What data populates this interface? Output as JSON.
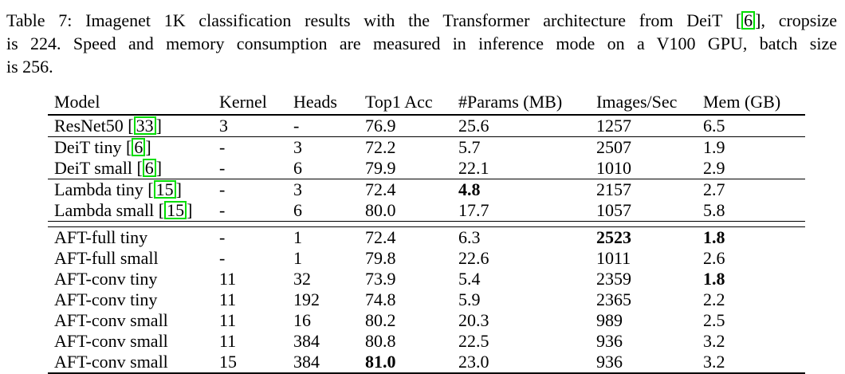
{
  "page": {
    "background_color": "#ffffff",
    "text_color": "#000000",
    "citation_box_color": "#00dd00"
  },
  "caption": {
    "lines": [
      {
        "justify": true,
        "segments": [
          {
            "t": "Table 7: Imagenet 1K classification results with the Transformer architecture from DeiT ["
          },
          {
            "cite": "6"
          },
          {
            "t": "], cropsize"
          }
        ]
      },
      {
        "justify": true,
        "segments": [
          {
            "t": "is 224. Speed and memory consumption are measured in inference mode on a V100 GPU, batch size"
          }
        ]
      },
      {
        "justify": false,
        "segments": [
          {
            "t": "is 256."
          }
        ]
      }
    ]
  },
  "table": {
    "columns": [
      "Model",
      "Kernel",
      "Heads",
      "Top1 Acc",
      "#Params (MB)",
      "Images/Sec",
      "Mem (GB)"
    ],
    "sections": [
      {
        "rule": "single",
        "rows": [
          {
            "model": {
              "name": "ResNet50",
              "cite": "33"
            },
            "cells": [
              {
                "v": "3"
              },
              {
                "v": "-"
              },
              {
                "v": "76.9"
              },
              {
                "v": "25.6"
              },
              {
                "v": "1257"
              },
              {
                "v": "6.5"
              }
            ]
          }
        ]
      },
      {
        "rule": "single",
        "rows": [
          {
            "model": {
              "name": "DeiT tiny",
              "cite": "6"
            },
            "cells": [
              {
                "v": "-"
              },
              {
                "v": "3"
              },
              {
                "v": "72.2"
              },
              {
                "v": "5.7"
              },
              {
                "v": "2507"
              },
              {
                "v": "1.9"
              }
            ]
          },
          {
            "model": {
              "name": "DeiT small",
              "cite": "6"
            },
            "cells": [
              {
                "v": "-"
              },
              {
                "v": "6"
              },
              {
                "v": "79.9"
              },
              {
                "v": "22.1"
              },
              {
                "v": "1010"
              },
              {
                "v": "2.9"
              }
            ]
          }
        ]
      },
      {
        "rule": "single",
        "rows": [
          {
            "model": {
              "name": "Lambda tiny",
              "cite": "15"
            },
            "cells": [
              {
                "v": "-"
              },
              {
                "v": "3"
              },
              {
                "v": "72.4"
              },
              {
                "v": "4.8",
                "bold": true
              },
              {
                "v": "2157"
              },
              {
                "v": "2.7"
              }
            ]
          },
          {
            "model": {
              "name": "Lambda small",
              "cite": "15"
            },
            "cells": [
              {
                "v": "-"
              },
              {
                "v": "6"
              },
              {
                "v": "80.0"
              },
              {
                "v": "17.7"
              },
              {
                "v": "1057"
              },
              {
                "v": "5.8"
              }
            ]
          }
        ]
      },
      {
        "rule": "double",
        "rows": [
          {
            "model": {
              "name": "AFT-full tiny"
            },
            "cells": [
              {
                "v": "-"
              },
              {
                "v": "1"
              },
              {
                "v": "72.4"
              },
              {
                "v": "6.3"
              },
              {
                "v": "2523",
                "bold": true
              },
              {
                "v": "1.8",
                "bold": true
              }
            ]
          },
          {
            "model": {
              "name": "AFT-full small"
            },
            "cells": [
              {
                "v": "-"
              },
              {
                "v": "1"
              },
              {
                "v": "79.8"
              },
              {
                "v": "22.6"
              },
              {
                "v": "1011"
              },
              {
                "v": "2.6"
              }
            ]
          },
          {
            "model": {
              "name": "AFT-conv tiny"
            },
            "cells": [
              {
                "v": "11"
              },
              {
                "v": "32"
              },
              {
                "v": "73.9"
              },
              {
                "v": "5.4"
              },
              {
                "v": "2359"
              },
              {
                "v": "1.8",
                "bold": true
              }
            ]
          },
          {
            "model": {
              "name": "AFT-conv tiny"
            },
            "cells": [
              {
                "v": "11"
              },
              {
                "v": "192"
              },
              {
                "v": "74.8"
              },
              {
                "v": "5.9"
              },
              {
                "v": "2365"
              },
              {
                "v": "2.2"
              }
            ]
          },
          {
            "model": {
              "name": "AFT-conv small"
            },
            "cells": [
              {
                "v": "11"
              },
              {
                "v": "16"
              },
              {
                "v": "80.2"
              },
              {
                "v": "20.3"
              },
              {
                "v": "989"
              },
              {
                "v": "2.5"
              }
            ]
          },
          {
            "model": {
              "name": "AFT-conv small"
            },
            "cells": [
              {
                "v": "11"
              },
              {
                "v": "384"
              },
              {
                "v": "80.8"
              },
              {
                "v": "22.5"
              },
              {
                "v": "936"
              },
              {
                "v": "3.2"
              }
            ]
          },
          {
            "model": {
              "name": "AFT-conv small"
            },
            "cells": [
              {
                "v": "15"
              },
              {
                "v": "384"
              },
              {
                "v": "81.0",
                "bold": true
              },
              {
                "v": "23.0"
              },
              {
                "v": "936"
              },
              {
                "v": "3.2"
              }
            ]
          }
        ]
      }
    ]
  }
}
